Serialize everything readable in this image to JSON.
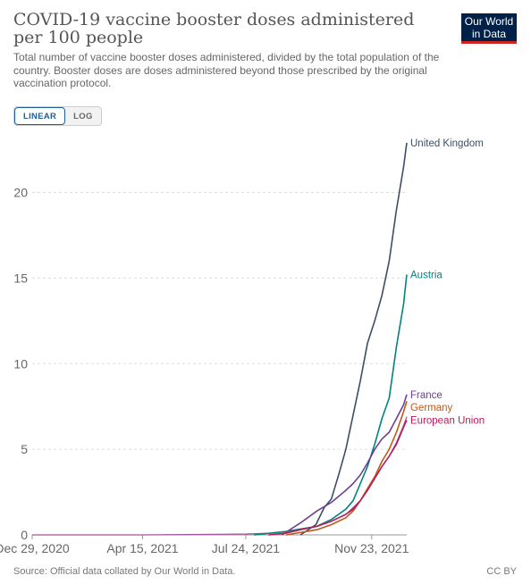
{
  "header": {
    "title": "COVID-19 vaccine booster doses administered per 100 people",
    "subtitle": "Total number of vaccine booster doses administered, divided by the total population of the country. Booster doses are doses administered beyond those prescribed by the original vaccination protocol.",
    "logo_line1": "Our World",
    "logo_line2": "in Data"
  },
  "scale_toggle": {
    "linear_label": "LINEAR",
    "log_label": "LOG",
    "selected": "linear"
  },
  "footer": {
    "source": "Source: Official data collated by Our World in Data.",
    "license": "CC BY"
  },
  "chart_data": {
    "type": "line",
    "title": "COVID-19 vaccine booster doses administered per 100 people",
    "xlabel": "",
    "ylabel": "",
    "x_range": [
      "2020-12-29",
      "2021-12-27"
    ],
    "ylim": [
      0,
      23
    ],
    "y_ticks": [
      0,
      5,
      10,
      15,
      20
    ],
    "x_tick_labels": [
      "Dec 29, 2020",
      "Apr 15, 2021",
      "Jul 24, 2021",
      "Nov 23, 2021"
    ],
    "x_ticks": [
      "2020-12-29",
      "2021-04-15",
      "2021-07-24",
      "2021-11-23"
    ],
    "grid": true,
    "legend_placement": "inline-right",
    "series": [
      {
        "name": "United Kingdom",
        "color": "#3c4e66",
        "x": [
          "2021-09-15",
          "2021-09-30",
          "2021-10-08",
          "2021-10-15",
          "2021-10-22",
          "2021-10-29",
          "2021-11-05",
          "2021-11-12",
          "2021-11-19",
          "2021-11-26",
          "2021-12-03",
          "2021-12-10",
          "2021-12-17",
          "2021-12-24",
          "2021-12-27"
        ],
        "y": [
          0,
          0.6,
          1.6,
          2.1,
          3.5,
          5.0,
          7.0,
          9.0,
          11.2,
          12.5,
          14.0,
          16.0,
          19.0,
          21.5,
          22.9
        ]
      },
      {
        "name": "Austria",
        "color": "#00847e",
        "x": [
          "2021-08-01",
          "2021-09-01",
          "2021-10-01",
          "2021-10-15",
          "2021-10-29",
          "2021-11-05",
          "2021-11-12",
          "2021-11-19",
          "2021-11-26",
          "2021-12-03",
          "2021-12-10",
          "2021-12-17",
          "2021-12-24",
          "2021-12-27"
        ],
        "y": [
          0,
          0.2,
          0.5,
          0.9,
          1.5,
          2.0,
          3.0,
          4.0,
          5.3,
          6.8,
          8.0,
          11.0,
          13.5,
          15.2
        ]
      },
      {
        "name": "France",
        "color": "#6d3e91",
        "x": [
          "2021-08-28",
          "2021-09-15",
          "2021-10-01",
          "2021-10-15",
          "2021-10-29",
          "2021-11-05",
          "2021-11-12",
          "2021-11-19",
          "2021-11-26",
          "2021-12-03",
          "2021-12-10",
          "2021-12-17",
          "2021-12-24",
          "2021-12-27"
        ],
        "y": [
          0,
          0.7,
          1.4,
          1.9,
          2.6,
          3.0,
          3.5,
          4.2,
          5.0,
          5.6,
          6.0,
          6.8,
          7.6,
          8.2
        ]
      },
      {
        "name": "Germany",
        "color": "#c05917",
        "x": [
          "2021-09-01",
          "2021-10-01",
          "2021-10-15",
          "2021-10-29",
          "2021-11-05",
          "2021-11-12",
          "2021-11-19",
          "2021-11-26",
          "2021-12-03",
          "2021-12-10",
          "2021-12-17",
          "2021-12-24",
          "2021-12-27"
        ],
        "y": [
          0,
          0.3,
          0.6,
          1.0,
          1.4,
          2.0,
          2.7,
          3.4,
          4.3,
          5.0,
          6.0,
          7.2,
          7.8
        ]
      },
      {
        "name": "European Union",
        "color": "#b81b5a",
        "x": [
          "2021-08-15",
          "2021-09-01",
          "2021-09-15",
          "2021-10-01",
          "2021-10-15",
          "2021-10-29",
          "2021-11-05",
          "2021-11-12",
          "2021-11-19",
          "2021-11-26",
          "2021-12-03",
          "2021-12-10",
          "2021-12-17",
          "2021-12-24",
          "2021-12-27"
        ],
        "y": [
          0,
          0.1,
          0.3,
          0.5,
          0.8,
          1.2,
          1.5,
          2.0,
          2.6,
          3.3,
          4.0,
          4.6,
          5.3,
          6.3,
          6.7
        ]
      },
      {
        "name": "",
        "color": "#a2559c",
        "x": [
          "2020-12-29",
          "2021-04-15",
          "2021-07-24",
          "2021-08-15",
          "2021-09-01",
          "2021-09-15",
          "2021-10-01",
          "2021-10-15",
          "2021-10-29",
          "2021-11-05",
          "2021-11-12",
          "2021-11-19",
          "2021-11-26",
          "2021-12-03",
          "2021-12-10",
          "2021-12-17",
          "2021-12-24",
          "2021-12-27"
        ],
        "y": [
          0,
          0,
          0.05,
          0.1,
          0.2,
          0.35,
          0.5,
          0.8,
          1.2,
          1.6,
          2.0,
          2.6,
          3.3,
          4.0,
          4.6,
          5.4,
          6.4,
          6.9
        ]
      }
    ]
  }
}
